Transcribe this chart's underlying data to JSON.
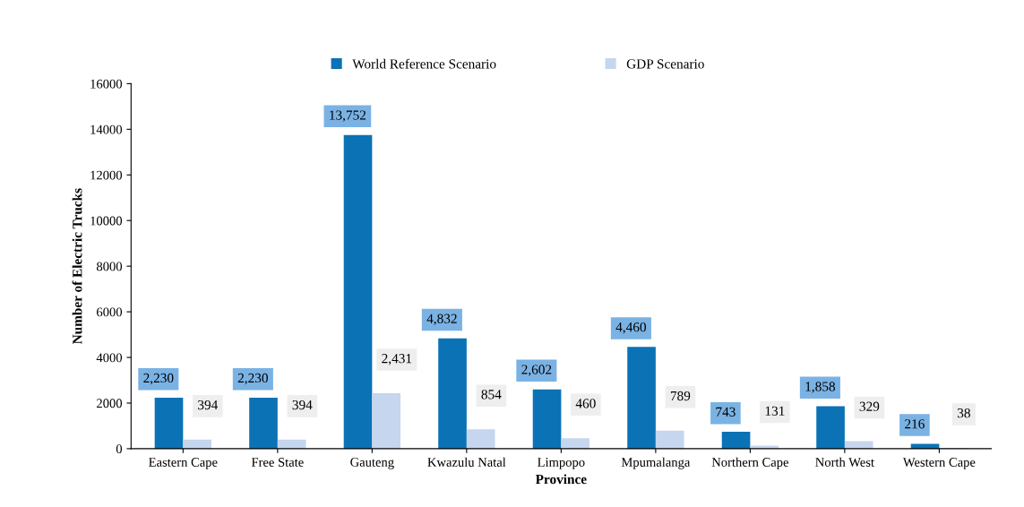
{
  "chart_data": {
    "type": "bar",
    "xlabel": "Province",
    "ylabel": "Number of Electric Trucks",
    "categories": [
      "Eastern Cape",
      "Free State",
      "Gauteng",
      "Kwazulu Natal",
      "Limpopo",
      "Mpumalanga",
      "Northern Cape",
      "North West",
      "Western Cape"
    ],
    "series": [
      {
        "name": "World Reference Scenario",
        "color": "#0b72b5",
        "values": [
          2230,
          2230,
          13752,
          4832,
          2602,
          4460,
          743,
          1858,
          216
        ],
        "value_labels": [
          "2,230",
          "2,230",
          "13,752",
          "4,832",
          "2,602",
          "4,460",
          "743",
          "1,858",
          "216"
        ]
      },
      {
        "name": "GDP Scenario",
        "color": "#c5d6ee",
        "values": [
          394,
          394,
          2431,
          854,
          460,
          789,
          131,
          329,
          38
        ],
        "value_labels": [
          "394",
          "394",
          "2,431",
          "854",
          "460",
          "789",
          "131",
          "329",
          "38"
        ]
      }
    ],
    "ylim": [
      0,
      16000
    ],
    "yticks": [
      0,
      2000,
      4000,
      6000,
      8000,
      10000,
      12000,
      14000,
      16000
    ],
    "grid": false,
    "legend": "top"
  }
}
